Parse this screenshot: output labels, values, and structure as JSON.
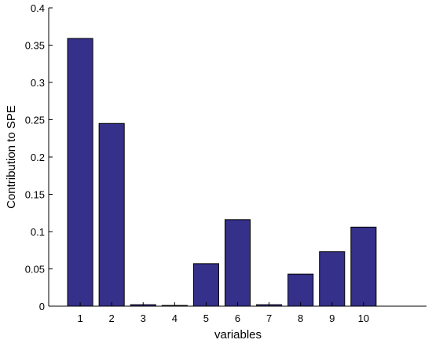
{
  "chart_data": {
    "type": "bar",
    "categories": [
      "1",
      "2",
      "3",
      "4",
      "5",
      "6",
      "7",
      "8",
      "9",
      "10"
    ],
    "values": [
      0.359,
      0.245,
      0.002,
      0.001,
      0.057,
      0.116,
      0.002,
      0.043,
      0.073,
      0.106
    ],
    "xlabel": "variables",
    "ylabel": "Contribution to SPE",
    "ylim": [
      0,
      0.4
    ],
    "xlim": [
      0,
      12
    ],
    "yticks": [
      0,
      0.05,
      0.1,
      0.15,
      0.2,
      0.25,
      0.3,
      0.35,
      0.4
    ],
    "ytick_labels": [
      "0",
      "0.05",
      "0.1",
      "0.15",
      "0.2",
      "0.25",
      "0.3",
      "0.35",
      "0.4"
    ],
    "grid": false,
    "legend": "none",
    "bar_color": "#35308a",
    "bar_edge_color": "#000000"
  }
}
